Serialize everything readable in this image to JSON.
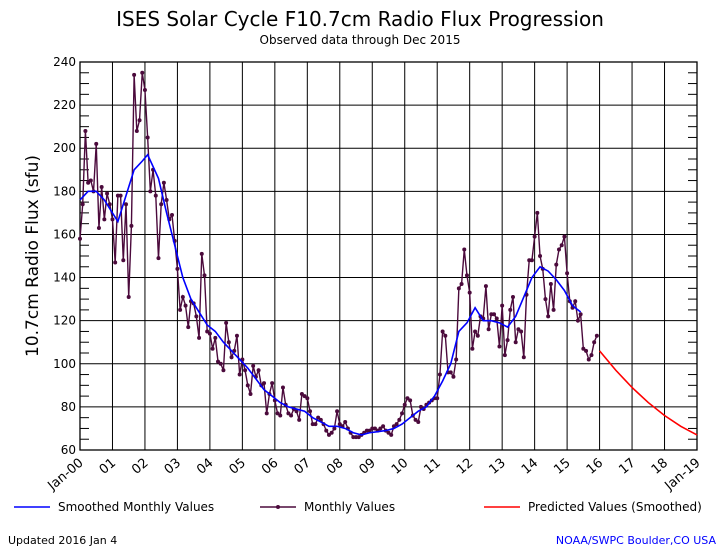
{
  "chart_data": {
    "type": "line",
    "title": "ISES Solar Cycle F10.7cm Radio Flux Progression",
    "subtitle": "Observed data through Dec 2015",
    "ylabel": "10.7cm Radio Flux (sfu)",
    "xlabel": "",
    "ylim": [
      60,
      240
    ],
    "yticks": [
      60,
      80,
      100,
      120,
      140,
      160,
      180,
      200,
      220,
      240
    ],
    "xlim": [
      "2000-01",
      "2019-01"
    ],
    "xtick_labels": [
      "Jan-00",
      "01",
      "02",
      "03",
      "04",
      "05",
      "06",
      "07",
      "08",
      "09",
      "10",
      "11",
      "12",
      "13",
      "14",
      "15",
      "16",
      "17",
      "18",
      "Jan-19"
    ],
    "grid": true,
    "legend_placement": "bottom",
    "series": [
      {
        "name": "Smoothed Monthly Values",
        "color": "#0000ff",
        "points": [
          [
            "2000-01",
            176
          ],
          [
            "2000-04",
            180
          ],
          [
            "2000-07",
            180
          ],
          [
            "2000-10",
            176
          ],
          [
            "2001-01",
            170
          ],
          [
            "2001-03",
            166
          ],
          [
            "2001-06",
            178
          ],
          [
            "2001-09",
            190
          ],
          [
            "2001-12",
            194
          ],
          [
            "2002-02",
            197
          ],
          [
            "2002-06",
            186
          ],
          [
            "2002-09",
            170
          ],
          [
            "2002-12",
            155
          ],
          [
            "2003-03",
            140
          ],
          [
            "2003-06",
            130
          ],
          [
            "2003-09",
            124
          ],
          [
            "2003-12",
            118
          ],
          [
            "2004-03",
            115
          ],
          [
            "2004-06",
            110
          ],
          [
            "2004-09",
            106
          ],
          [
            "2004-12",
            102
          ],
          [
            "2005-03",
            98
          ],
          [
            "2005-06",
            93
          ],
          [
            "2005-09",
            88
          ],
          [
            "2005-12",
            85
          ],
          [
            "2006-03",
            82
          ],
          [
            "2006-06",
            80
          ],
          [
            "2006-09",
            79
          ],
          [
            "2006-12",
            78
          ],
          [
            "2007-03",
            75
          ],
          [
            "2007-06",
            73
          ],
          [
            "2007-09",
            71
          ],
          [
            "2007-12",
            71
          ],
          [
            "2008-03",
            70
          ],
          [
            "2008-06",
            68
          ],
          [
            "2008-09",
            67
          ],
          [
            "2008-12",
            68
          ],
          [
            "2009-03",
            68.5
          ],
          [
            "2009-06",
            69
          ],
          [
            "2009-09",
            70
          ],
          [
            "2009-12",
            72
          ],
          [
            "2010-03",
            75
          ],
          [
            "2010-06",
            78
          ],
          [
            "2010-09",
            80
          ],
          [
            "2010-12",
            85
          ],
          [
            "2011-03",
            92
          ],
          [
            "2011-06",
            100
          ],
          [
            "2011-09",
            115
          ],
          [
            "2011-12",
            119
          ],
          [
            "2012-03",
            126
          ],
          [
            "2012-06",
            120
          ],
          [
            "2012-09",
            120
          ],
          [
            "2012-12",
            119
          ],
          [
            "2013-03",
            117
          ],
          [
            "2013-06",
            122
          ],
          [
            "2013-09",
            131
          ],
          [
            "2013-12",
            140
          ],
          [
            "2014-03",
            145
          ],
          [
            "2014-06",
            143
          ],
          [
            "2014-09",
            139
          ],
          [
            "2014-12",
            134
          ],
          [
            "2015-03",
            127
          ],
          [
            "2015-06",
            124
          ]
        ]
      },
      {
        "name": "Monthly Values",
        "color": "#4b0a3c",
        "start": "2000-01",
        "values": [
          158,
          174,
          208,
          184,
          185,
          180,
          202,
          163,
          182,
          167,
          179,
          174,
          167,
          147,
          178,
          178,
          148,
          174,
          131,
          164,
          234,
          208,
          213,
          235,
          227,
          205,
          180,
          190,
          178,
          149,
          174,
          184,
          176,
          167,
          169,
          157,
          144,
          125,
          131,
          127,
          117,
          129,
          128,
          122,
          112,
          151,
          141,
          115,
          114,
          107,
          112,
          101,
          100,
          97,
          119,
          110,
          103,
          106,
          113,
          95,
          102,
          97,
          90,
          86,
          99,
          94,
          97,
          90,
          91,
          77,
          86,
          91,
          83,
          77,
          76,
          89,
          81,
          77,
          76,
          79,
          78,
          74,
          86,
          85,
          84,
          78,
          72,
          72,
          75,
          74,
          72,
          69,
          67,
          68,
          70,
          78,
          72,
          71,
          73,
          70,
          68,
          66,
          66,
          66,
          67,
          68,
          69,
          69,
          70,
          70,
          69,
          70,
          71,
          69,
          68,
          67,
          71,
          72,
          74,
          77,
          81,
          84,
          83,
          76,
          74,
          73,
          80,
          79,
          81,
          82,
          83,
          84,
          84,
          95,
          115,
          113,
          96,
          96,
          94,
          102,
          135,
          137,
          153,
          141,
          133,
          107,
          115,
          113,
          122,
          121,
          136,
          116,
          123,
          123,
          121,
          108,
          127,
          104,
          111,
          125,
          131,
          110,
          116,
          115,
          103,
          132,
          148,
          148,
          159,
          170,
          150,
          144,
          130,
          122,
          137,
          125,
          146,
          153,
          155,
          159,
          142,
          129,
          126,
          129,
          120,
          123,
          107,
          106,
          102,
          104,
          110,
          113
        ]
      },
      {
        "name": "Predicted Values (Smoothed)",
        "color": "#ff0000",
        "points": [
          [
            "2016-01",
            106
          ],
          [
            "2016-07",
            97
          ],
          [
            "2017-01",
            89
          ],
          [
            "2017-07",
            82
          ],
          [
            "2018-01",
            76
          ],
          [
            "2018-07",
            71
          ],
          [
            "2019-01",
            67
          ]
        ]
      }
    ]
  },
  "footer": {
    "updated": "Updated 2016 Jan  4",
    "source": "NOAA/SWPC Boulder,CO USA"
  }
}
